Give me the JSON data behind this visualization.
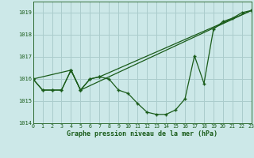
{
  "title": "Graphe pression niveau de la mer (hPa)",
  "bg_color": "#cce8e8",
  "grid_color": "#aacccc",
  "line_color": "#1a5c1a",
  "x_min": 0,
  "x_max": 23,
  "y_min": 1014,
  "y_max": 1019.5,
  "y_ticks": [
    1014,
    1015,
    1016,
    1017,
    1018,
    1019
  ],
  "x_ticks": [
    0,
    1,
    2,
    3,
    4,
    5,
    6,
    7,
    8,
    9,
    10,
    11,
    12,
    13,
    14,
    15,
    16,
    17,
    18,
    19,
    20,
    21,
    22,
    23
  ],
  "series1_x": [
    0,
    1,
    2,
    3,
    4,
    5,
    6,
    7,
    8,
    9,
    10,
    11,
    12,
    13,
    14,
    15,
    16,
    17,
    18,
    19,
    20,
    21,
    22,
    23
  ],
  "series1_y": [
    1016.0,
    1015.5,
    1015.5,
    1015.5,
    1016.4,
    1015.5,
    1016.0,
    1016.1,
    1016.0,
    1015.5,
    1015.35,
    1014.9,
    1014.5,
    1014.4,
    1014.4,
    1014.6,
    1015.1,
    1017.05,
    1015.8,
    1018.25,
    1018.6,
    1018.75,
    1019.0,
    1019.1
  ],
  "series2_x": [
    0,
    4,
    5,
    6,
    7,
    23
  ],
  "series2_y": [
    1016.0,
    1016.4,
    1015.5,
    1016.0,
    1016.1,
    1019.1
  ],
  "series3_x": [
    0,
    1,
    2,
    3,
    4,
    5,
    23
  ],
  "series3_y": [
    1016.0,
    1015.5,
    1015.5,
    1015.5,
    1016.4,
    1015.5,
    1019.1
  ]
}
